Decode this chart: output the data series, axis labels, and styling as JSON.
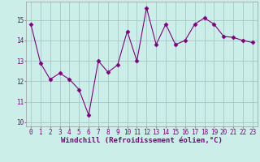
{
  "x": [
    0,
    1,
    2,
    3,
    4,
    5,
    6,
    7,
    8,
    9,
    10,
    11,
    12,
    13,
    14,
    15,
    16,
    17,
    18,
    19,
    20,
    21,
    22,
    23
  ],
  "y": [
    14.8,
    12.9,
    12.1,
    12.4,
    12.1,
    11.6,
    10.35,
    13.0,
    12.45,
    12.8,
    14.45,
    13.0,
    15.6,
    13.8,
    14.8,
    13.8,
    14.0,
    14.8,
    15.1,
    14.8,
    14.2,
    14.15,
    14.0,
    13.9
  ],
  "line_color": "#800080",
  "marker": "D",
  "marker_size": 2.5,
  "bg_color": "#cceee8",
  "grid_color": "#aacccc",
  "xlabel": "Windchill (Refroidissement éolien,°C)",
  "ylim": [
    9.8,
    15.9
  ],
  "yticks": [
    10,
    11,
    12,
    13,
    14,
    15
  ],
  "xticks": [
    0,
    1,
    2,
    3,
    4,
    5,
    6,
    7,
    8,
    9,
    10,
    11,
    12,
    13,
    14,
    15,
    16,
    17,
    18,
    19,
    20,
    21,
    22,
    23
  ],
  "tick_fontsize": 5.5,
  "xlabel_fontsize": 6.5
}
